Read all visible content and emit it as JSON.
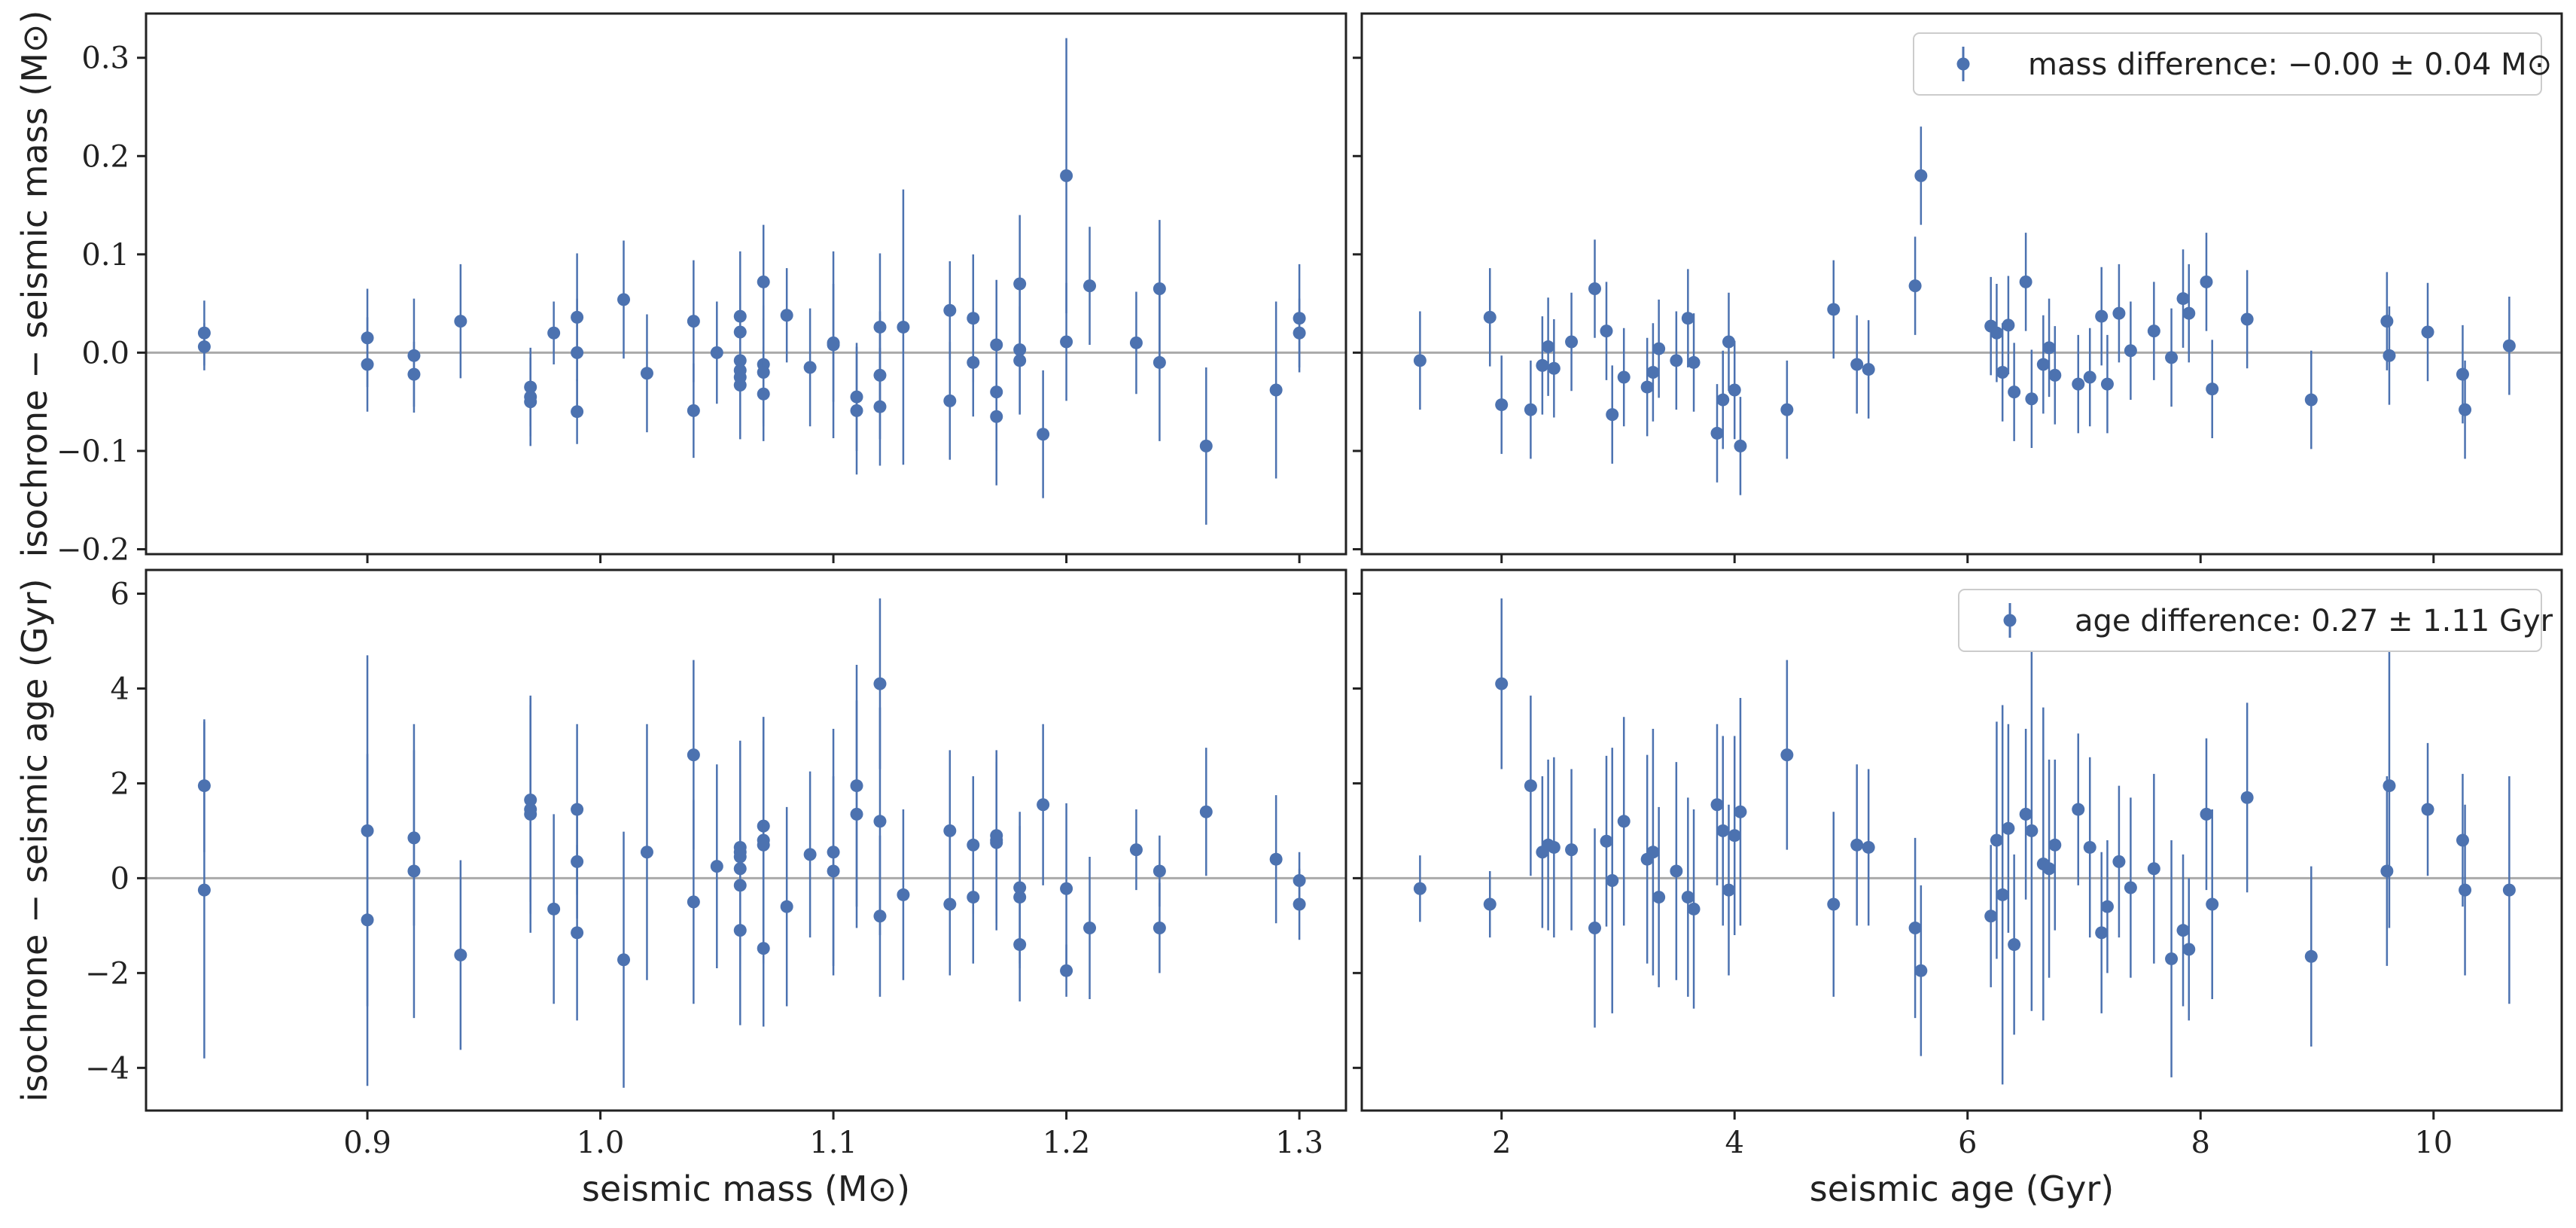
{
  "colors": {
    "marker": "#4c72b0",
    "zero_line": "#aaaaaa",
    "frame": "#222222"
  },
  "labels": {
    "ylabel_top": "isochrone − seismic mass (M⊙)",
    "ylabel_bottom": "isochrone − seismic age (Gyr)",
    "xlabel_left": "seismic mass (M⊙)",
    "xlabel_right": "seismic age (Gyr)",
    "legend_top": "mass difference: −0.00 ± 0.04 M⊙",
    "legend_bottom": "age difference: 0.27 ± 1.11 Gyr"
  },
  "axes": {
    "mass_x": {
      "range": [
        0.805,
        1.32
      ],
      "ticks": [
        0.9,
        1.0,
        1.1,
        1.2,
        1.3
      ],
      "tick_labels": [
        "0.9",
        "1.0",
        "1.1",
        "1.2",
        "1.3"
      ]
    },
    "age_x": {
      "range": [
        0.8,
        11.1
      ],
      "ticks": [
        2,
        4,
        6,
        8,
        10
      ],
      "tick_labels": [
        "2",
        "4",
        "6",
        "8",
        "10"
      ]
    },
    "dmass_y": {
      "range": [
        -0.205,
        0.345
      ],
      "ticks": [
        -0.2,
        -0.1,
        0.0,
        0.1,
        0.2,
        0.3
      ],
      "tick_labels": [
        "−0.2",
        "−0.1",
        "0.0",
        "0.1",
        "0.2",
        "0.3"
      ]
    },
    "dage_y": {
      "range": [
        -4.9,
        6.5
      ],
      "ticks": [
        -4,
        -2,
        0,
        2,
        4,
        6
      ],
      "tick_labels": [
        "−4",
        "−2",
        "0",
        "2",
        "4",
        "6"
      ]
    }
  },
  "chart_data": [
    {
      "type": "scatter",
      "title": "",
      "xlabel": "seismic mass (M⊙)",
      "ylabel": "isochrone − seismic mass (M⊙)",
      "xlim": [
        0.805,
        1.32
      ],
      "ylim": [
        -0.205,
        0.345
      ],
      "legend": "mass difference: −0.00 ± 0.04 M⊙",
      "legend_location": "top-right",
      "series": [
        {
          "name": "mass difference",
          "x": [
            0.83,
            0.83,
            0.9,
            0.9,
            0.92,
            0.92,
            0.94,
            0.97,
            0.97,
            0.97,
            0.98,
            0.99,
            0.99,
            0.99,
            1.01,
            1.02,
            1.04,
            1.04,
            1.05,
            1.06,
            1.06,
            1.06,
            1.06,
            1.06,
            1.06,
            1.07,
            1.07,
            1.07,
            1.07,
            1.08,
            1.09,
            1.1,
            1.1,
            1.11,
            1.11,
            1.12,
            1.12,
            1.12,
            1.13,
            1.15,
            1.15,
            1.16,
            1.16,
            1.17,
            1.17,
            1.17,
            1.18,
            1.18,
            1.18,
            1.19,
            1.2,
            1.2,
            1.21,
            1.23,
            1.24,
            1.24,
            1.26,
            1.29,
            1.3,
            1.3
          ],
          "y": [
            0.02,
            0.006,
            0.015,
            -0.012,
            -0.003,
            -0.022,
            0.032,
            -0.035,
            -0.045,
            -0.05,
            0.02,
            0.036,
            0.0,
            -0.06,
            0.054,
            -0.021,
            0.032,
            -0.059,
            0.0,
            0.037,
            0.021,
            -0.008,
            -0.018,
            -0.025,
            -0.033,
            0.072,
            -0.012,
            -0.02,
            -0.042,
            0.038,
            -0.015,
            0.01,
            0.008,
            -0.045,
            -0.059,
            0.026,
            -0.023,
            -0.055,
            0.026,
            0.043,
            -0.049,
            0.035,
            -0.01,
            -0.04,
            -0.065,
            0.008,
            0.07,
            0.003,
            -0.008,
            -0.083,
            0.18,
            0.011,
            0.068,
            0.01,
            0.065,
            -0.01,
            -0.095,
            -0.038,
            0.035,
            0.02
          ],
          "yerr": [
            0.033,
            0.024,
            0.05,
            0.048,
            0.058,
            0.033,
            0.058,
            0.04,
            0.04,
            0.045,
            0.032,
            0.065,
            0.055,
            0.033,
            0.06,
            0.06,
            0.062,
            0.048,
            0.052,
            0.066,
            0.058,
            0.066,
            0.07,
            0.06,
            0.055,
            0.058,
            0.06,
            0.055,
            0.048,
            0.048,
            0.06,
            0.06,
            0.095,
            0.055,
            0.065,
            0.075,
            0.065,
            0.06,
            0.14,
            0.05,
            0.06,
            0.065,
            0.055,
            0.06,
            0.07,
            0.066,
            0.07,
            0.065,
            0.055,
            0.065,
            0.14,
            0.06,
            0.06,
            0.052,
            0.07,
            0.08,
            0.08,
            0.09,
            0.055,
            0.035
          ]
        }
      ]
    },
    {
      "type": "scatter",
      "title": "",
      "xlabel": "seismic age (Gyr)",
      "ylabel": "isochrone − seismic mass (M⊙)",
      "xlim": [
        0.8,
        11.1
      ],
      "ylim": [
        -0.205,
        0.345
      ],
      "legend": "mass difference: −0.00 ± 0.04 M⊙",
      "legend_location": "top-right",
      "series": [
        {
          "name": "mass difference",
          "x": [
            1.3,
            1.9,
            2.0,
            2.25,
            2.35,
            2.4,
            2.45,
            2.6,
            2.8,
            2.9,
            2.95,
            3.05,
            3.25,
            3.3,
            3.35,
            3.5,
            3.6,
            3.65,
            3.85,
            3.9,
            3.95,
            4.0,
            4.05,
            4.45,
            4.85,
            5.05,
            5.15,
            5.55,
            5.6,
            6.2,
            6.25,
            6.3,
            6.35,
            6.4,
            6.5,
            6.55,
            6.65,
            6.7,
            6.75,
            6.95,
            7.05,
            7.15,
            7.2,
            7.3,
            7.4,
            7.6,
            7.75,
            7.85,
            7.9,
            8.05,
            8.1,
            8.4,
            8.95,
            9.6,
            9.62,
            9.95,
            10.25,
            10.27,
            10.65
          ],
          "y": [
            -0.008,
            0.036,
            -0.053,
            -0.058,
            -0.013,
            0.006,
            -0.016,
            0.011,
            0.065,
            0.022,
            -0.063,
            -0.025,
            -0.035,
            -0.02,
            0.004,
            -0.008,
            0.035,
            -0.01,
            -0.082,
            -0.048,
            0.011,
            -0.038,
            -0.095,
            -0.058,
            0.044,
            -0.012,
            -0.017,
            0.068,
            0.18,
            0.027,
            0.02,
            -0.02,
            0.028,
            -0.04,
            0.072,
            -0.047,
            -0.012,
            0.005,
            -0.023,
            -0.032,
            -0.025,
            0.037,
            -0.032,
            0.04,
            0.002,
            0.022,
            -0.005,
            0.055,
            0.04,
            0.072,
            -0.037,
            0.034,
            -0.048,
            0.032,
            -0.003,
            0.021,
            -0.022,
            -0.058,
            0.007
          ]
        }
      ]
    },
    {
      "type": "scatter",
      "title": "",
      "xlabel": "seismic mass (M⊙)",
      "ylabel": "isochrone − seismic age (Gyr)",
      "xlim": [
        0.805,
        1.32
      ],
      "ylim": [
        -4.9,
        6.5
      ],
      "legend": "age difference: 0.27 ± 1.11 Gyr",
      "legend_location": "top-right",
      "series": [
        {
          "name": "age difference",
          "x": [
            0.83,
            0.83,
            0.9,
            0.9,
            0.92,
            0.92,
            0.94,
            0.97,
            0.97,
            0.97,
            0.98,
            0.99,
            0.99,
            0.99,
            1.01,
            1.02,
            1.04,
            1.04,
            1.05,
            1.06,
            1.06,
            1.06,
            1.06,
            1.06,
            1.06,
            1.07,
            1.07,
            1.07,
            1.07,
            1.08,
            1.09,
            1.1,
            1.1,
            1.11,
            1.11,
            1.12,
            1.12,
            1.12,
            1.13,
            1.15,
            1.15,
            1.16,
            1.16,
            1.17,
            1.17,
            1.17,
            1.18,
            1.18,
            1.18,
            1.19,
            1.2,
            1.2,
            1.21,
            1.23,
            1.24,
            1.24,
            1.26,
            1.29,
            1.3,
            1.3
          ],
          "y": [
            1.95,
            -0.25,
            1.0,
            -0.88,
            0.85,
            0.15,
            -1.62,
            1.65,
            1.45,
            1.35,
            -0.65,
            1.45,
            0.35,
            -1.15,
            -1.72,
            0.55,
            2.6,
            -0.5,
            0.25,
            0.65,
            0.55,
            0.2,
            -0.15,
            -1.1,
            0.45,
            1.1,
            0.7,
            0.8,
            -1.48,
            -0.6,
            0.5,
            0.55,
            0.15,
            1.95,
            1.35,
            4.1,
            1.2,
            -0.8,
            -0.35,
            1.0,
            -0.55,
            0.7,
            -0.4,
            0.9,
            0.75,
            0.8,
            -0.2,
            -0.4,
            -1.4,
            1.55,
            -0.22,
            -1.95,
            -1.05,
            0.6,
            0.15,
            -1.05,
            1.4,
            0.4,
            -0.55,
            -0.05
          ],
          "yerr": [
            1.4,
            3.55,
            3.7,
            3.5,
            1.85,
            3.1,
            2.0,
            2.15,
            2.2,
            2.5,
            2.0,
            1.8,
            1.2,
            1.85,
            2.7,
            2.7,
            2.0,
            2.15,
            2.15,
            2.25,
            2.2,
            2.0,
            2.2,
            2.0,
            2.4,
            2.3,
            2.2,
            2.6,
            1.65,
            2.1,
            1.75,
            2.6,
            2.0,
            2.55,
            2.4,
            1.8,
            2.4,
            1.7,
            1.8,
            1.7,
            1.5,
            1.45,
            1.4,
            1.7,
            1.7,
            1.9,
            1.6,
            1.5,
            1.2,
            1.7,
            1.8,
            0.55,
            1.5,
            0.85,
            0.75,
            0.95,
            1.35,
            1.35,
            0.75,
            0.6
          ]
        }
      ]
    },
    {
      "type": "scatter",
      "title": "",
      "xlabel": "seismic age (Gyr)",
      "ylabel": "isochrone − seismic age (Gyr)",
      "xlim": [
        0.8,
        11.1
      ],
      "ylim": [
        -4.9,
        6.5
      ],
      "legend": "age difference: 0.27 ± 1.11 Gyr",
      "legend_location": "top-right",
      "series": [
        {
          "name": "age difference",
          "x": [
            1.3,
            1.9,
            2.0,
            2.25,
            2.35,
            2.4,
            2.45,
            2.6,
            2.8,
            2.9,
            2.95,
            3.05,
            3.25,
            3.3,
            3.35,
            3.5,
            3.6,
            3.65,
            3.85,
            3.9,
            3.95,
            4.0,
            4.05,
            4.45,
            4.85,
            5.05,
            5.15,
            5.55,
            5.6,
            6.2,
            6.25,
            6.3,
            6.35,
            6.4,
            6.5,
            6.55,
            6.65,
            6.7,
            6.75,
            6.95,
            7.05,
            7.15,
            7.2,
            7.3,
            7.4,
            7.6,
            7.75,
            7.85,
            7.9,
            8.05,
            8.1,
            8.4,
            8.95,
            9.6,
            9.62,
            9.95,
            10.25,
            10.27,
            10.65
          ],
          "y": [
            -0.22,
            -0.55,
            4.1,
            1.95,
            0.55,
            0.7,
            0.65,
            0.6,
            -1.05,
            0.78,
            -0.05,
            1.2,
            0.4,
            0.55,
            -0.4,
            0.15,
            -0.4,
            -0.65,
            1.55,
            1.0,
            -0.25,
            0.9,
            1.4,
            2.6,
            -0.55,
            0.7,
            0.65,
            -1.05,
            -1.95,
            -0.8,
            0.8,
            -0.35,
            1.05,
            -1.4,
            1.35,
            1.0,
            0.3,
            0.2,
            0.7,
            1.45,
            0.65,
            -1.15,
            -0.6,
            0.35,
            -0.2,
            0.2,
            -1.7,
            -1.1,
            -1.5,
            1.35,
            -0.55,
            1.7,
            -1.65,
            0.15,
            1.95,
            1.45,
            0.8,
            -0.25,
            -0.25
          ],
          "yerr": [
            0.7,
            0.7,
            1.8,
            1.9,
            1.6,
            1.8,
            1.9,
            1.7,
            2.1,
            1.8,
            2.8,
            2.2,
            2.2,
            2.6,
            1.9,
            2.3,
            2.1,
            2.1,
            1.7,
            2.0,
            1.8,
            2.1,
            2.4,
            2.0,
            1.95,
            1.7,
            1.65,
            1.9,
            1.8,
            1.5,
            2.5,
            4.0,
            2.2,
            1.9,
            1.8,
            3.8,
            3.3,
            2.3,
            1.8,
            1.6,
            1.9,
            1.7,
            1.4,
            1.6,
            1.9,
            2.0,
            2.5,
            1.6,
            1.5,
            1.6,
            2.0,
            2.0,
            1.9,
            2.0,
            3.0,
            1.4,
            1.4,
            1.8,
            2.4
          ]
        }
      ]
    }
  ]
}
